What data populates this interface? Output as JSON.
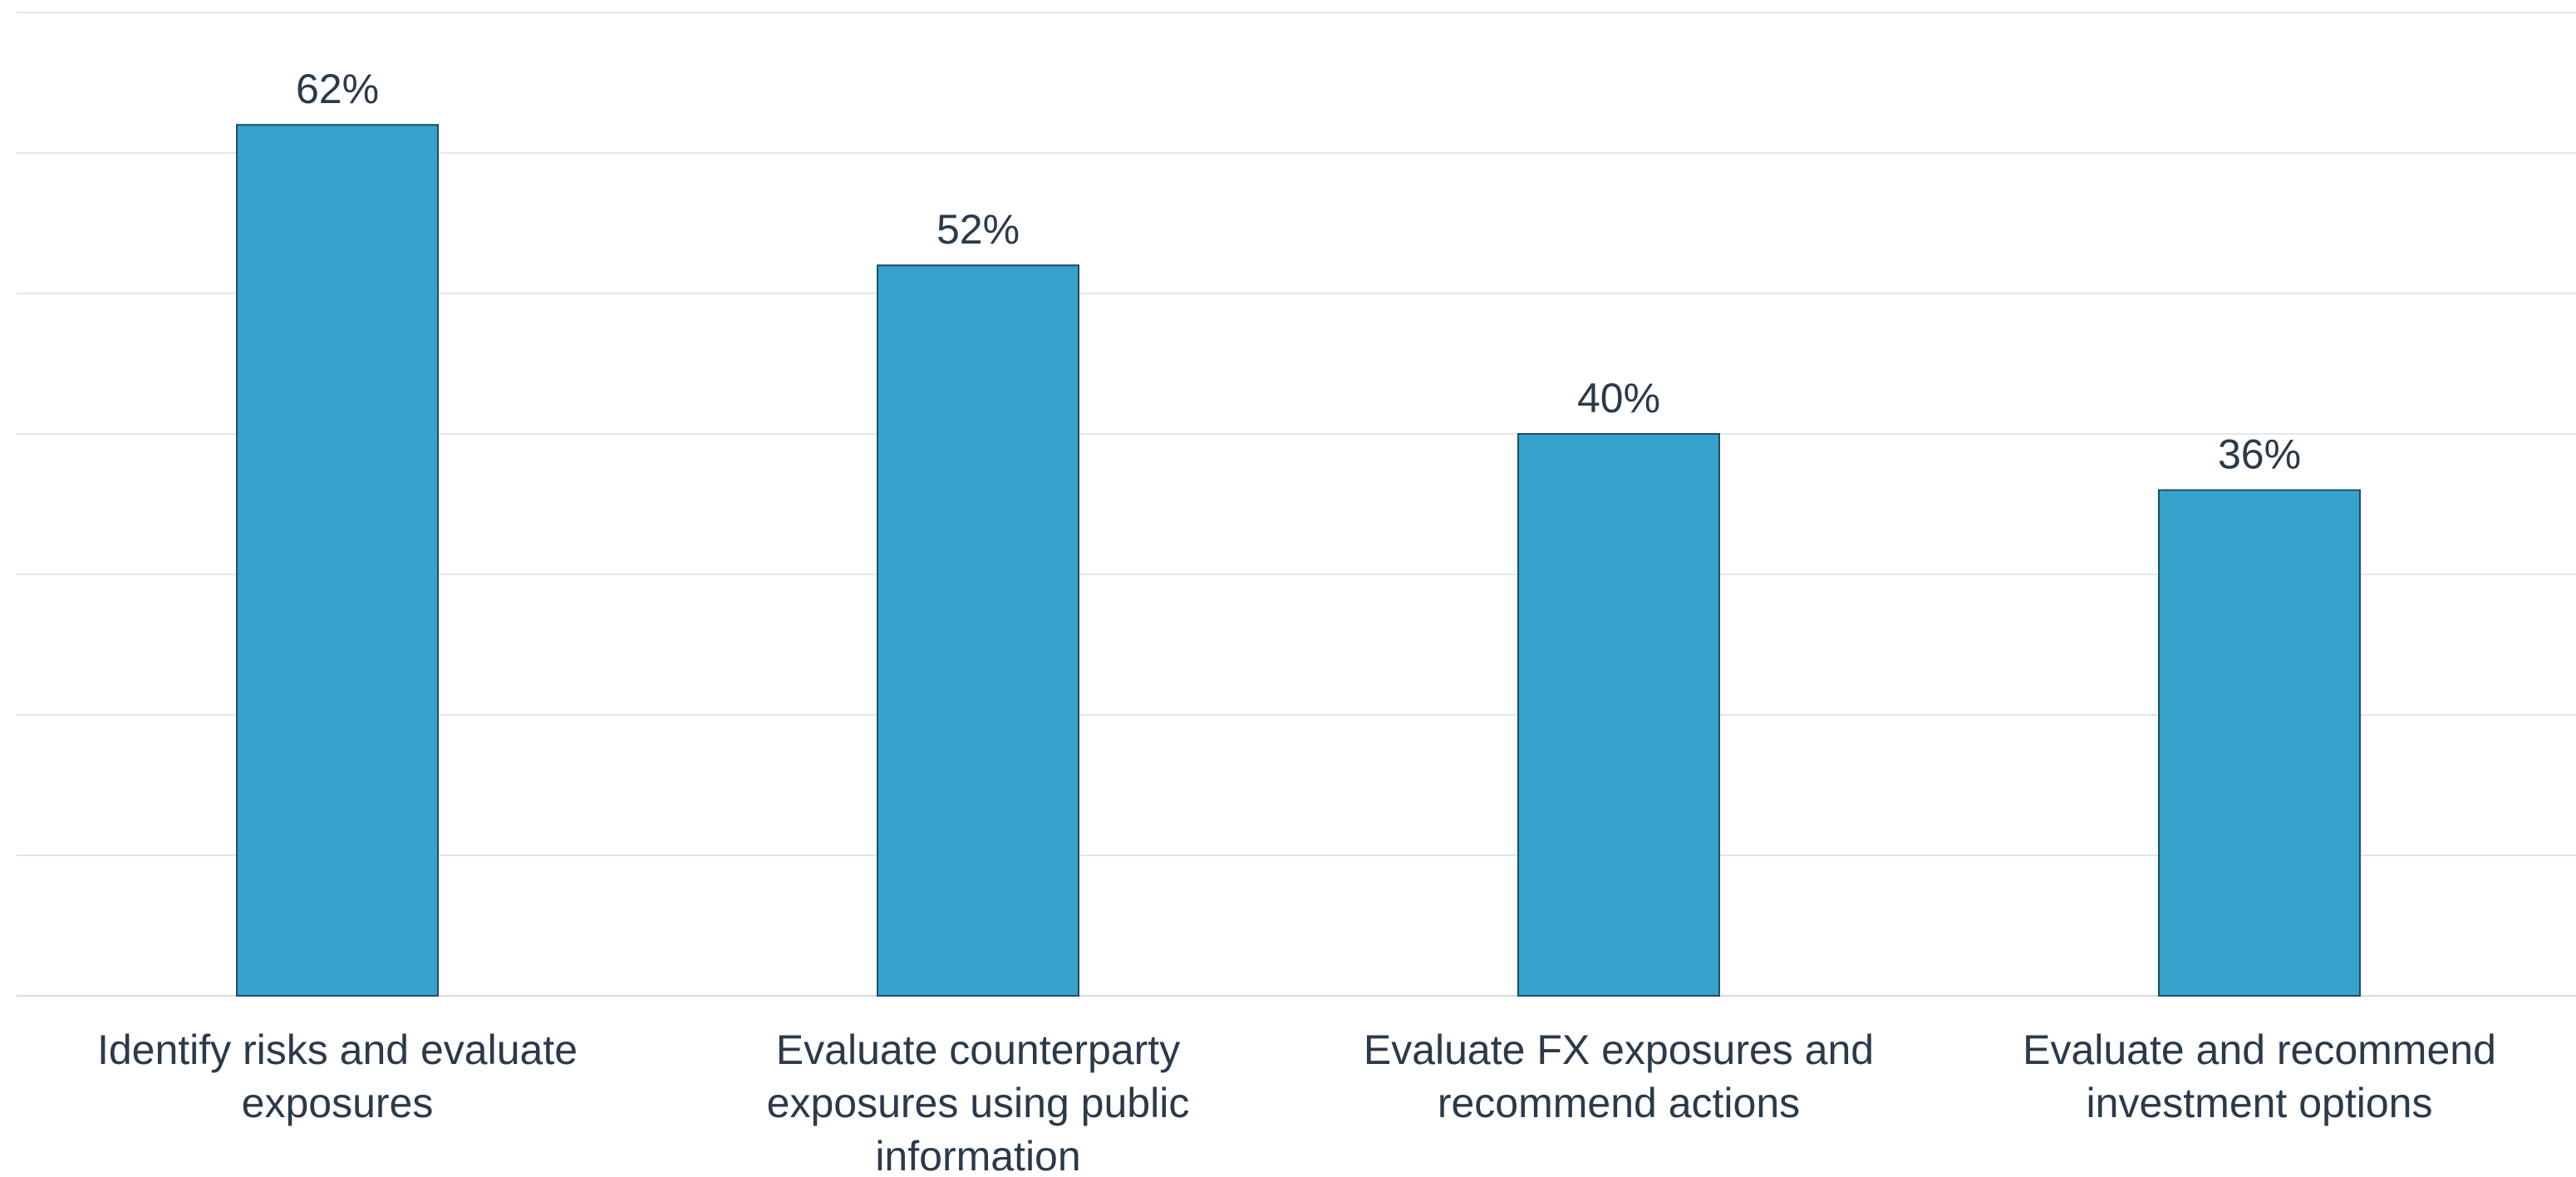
{
  "chart_data": {
    "type": "bar",
    "title": "",
    "xlabel": "",
    "ylabel": "",
    "categories": [
      [
        "Identify risks and evaluate",
        "exposures"
      ],
      [
        "Evaluate counterparty",
        "exposures using public",
        "information"
      ],
      [
        "Evaluate FX exposures and",
        "recommend actions"
      ],
      [
        "Evaluate and recommend",
        "investment options"
      ]
    ],
    "values": [
      62,
      52,
      40,
      36
    ],
    "data_labels": [
      "62%",
      "52%",
      "40%",
      "36%"
    ],
    "value_unit": "%",
    "ylim": [
      0,
      70
    ],
    "y_tick_step": 10,
    "y_tick_labels_shown": false,
    "grid": true,
    "legend": "none",
    "bar_color": "#35a2cc",
    "bar_edge_color": "#1f4e64",
    "text_color": "#2b3a4a",
    "grid_color": "#e6e6e6"
  }
}
